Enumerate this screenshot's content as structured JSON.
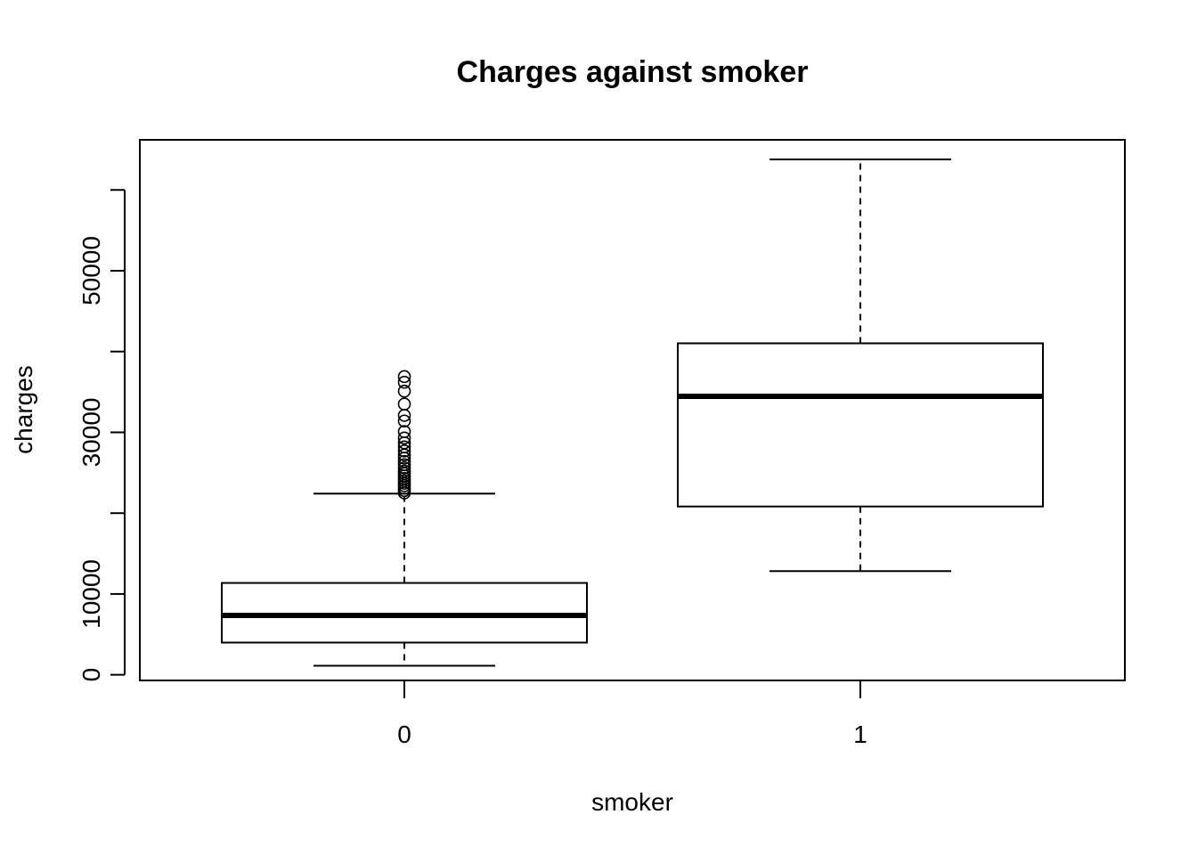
{
  "chart_data": {
    "type": "boxplot",
    "title": "Charges against smoker",
    "xlabel": "smoker",
    "ylabel": "charges",
    "categories": [
      "0",
      "1"
    ],
    "yticks": [
      0,
      10000,
      20000,
      30000,
      40000,
      50000,
      60000
    ],
    "ytick_labels": [
      "0",
      "10000",
      "",
      "30000",
      "",
      "50000",
      ""
    ],
    "ylim": [
      -700,
      66200
    ],
    "grid": false,
    "boxes": [
      {
        "category": "0",
        "whisker_low": 1122,
        "q1": 3986,
        "median": 7345,
        "q3": 11363,
        "whisker_high": 22412,
        "outliers": [
          22500,
          22800,
          23100,
          23400,
          23700,
          24000,
          24300,
          24600,
          24900,
          25200,
          25600,
          26000,
          26400,
          26800,
          27200,
          27700,
          28200,
          28700,
          29300,
          30100,
          31400,
          32100,
          33500,
          35100,
          36200,
          36900
        ]
      },
      {
        "category": "1",
        "whisker_low": 12829,
        "q1": 20826,
        "median": 34456,
        "q3": 41019,
        "whisker_high": 63770,
        "outliers": []
      }
    ]
  }
}
